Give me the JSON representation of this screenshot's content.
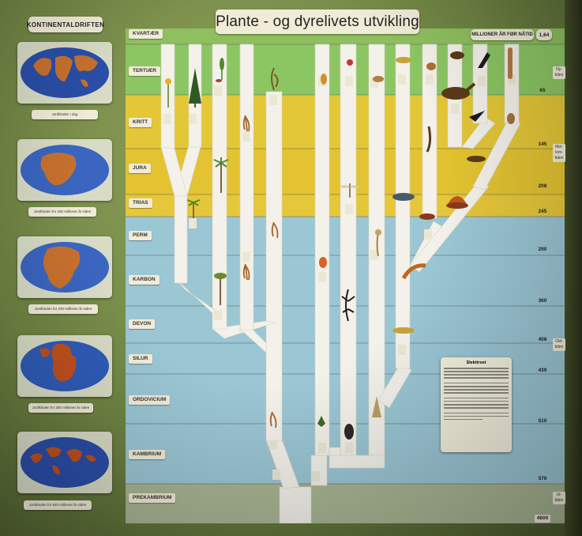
{
  "title": "Plante - og dyrelivets utvikling",
  "left_panel": {
    "title": "KONTINENTALDRIFTEN",
    "globes": [
      {
        "caption": "Jordkloden i dag"
      },
      {
        "caption": "Jordkloden for 180 millioner år siden"
      },
      {
        "caption": "Jordkloden for 220 millioner år siden"
      },
      {
        "caption": "Jordkloden for 360 millioner år siden"
      },
      {
        "caption": "Jordkloden for 540 millioner år siden"
      }
    ]
  },
  "timescale": {
    "header": "MILLIONER ÅR FØR NÅTID",
    "top_value": "1,64",
    "ticks": [
      "65",
      "145",
      "208",
      "245",
      "290",
      "360",
      "408",
      "439",
      "510",
      "570",
      "4600"
    ]
  },
  "periods": [
    "KVARTÆR",
    "TERTIÆR",
    "KRITT",
    "JURA",
    "TRIAS",
    "PERM",
    "KARBON",
    "DEVON",
    "SILUR",
    "ORDOVICIUM",
    "KAMBRIUM",
    "PREKAMBRIUM"
  ],
  "eras": [
    {
      "label": "Ny-tiden"
    },
    {
      "label": "Mel-lom-tiden"
    },
    {
      "label": "Old-tiden"
    },
    {
      "label": "Ur-tiden"
    }
  ],
  "info_box": {
    "heading": "Slekttreet"
  },
  "colors": {
    "quaternary": "#8fc760",
    "mesozoic": "#e3c531",
    "paleozoic": "#99c4d3",
    "precambrian": "#aab592",
    "branch": "#f3f1ea"
  }
}
